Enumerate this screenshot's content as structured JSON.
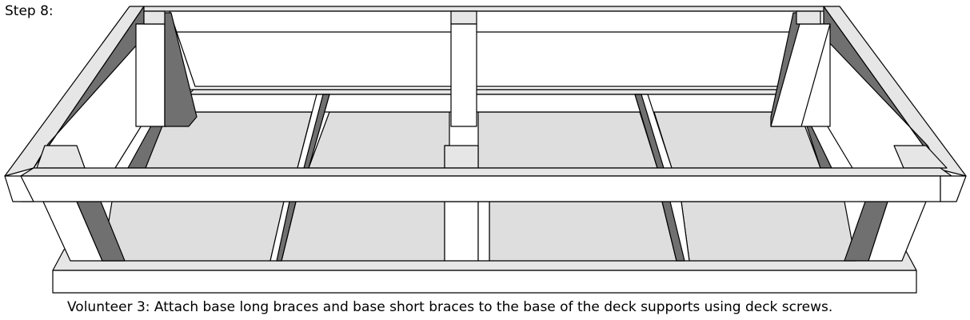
{
  "step": {
    "title": "Step 8:"
  },
  "caption": {
    "text": "Volunteer 3: Attach base long braces and base short braces to the base of the deck supports using deck screws."
  },
  "colors": {
    "background": "#ffffff",
    "wood_face": "#ffffff",
    "wood_top": "#e6e6e6",
    "wood_shadow": "#707070",
    "floor": "#dedede",
    "outline": "#000000"
  }
}
